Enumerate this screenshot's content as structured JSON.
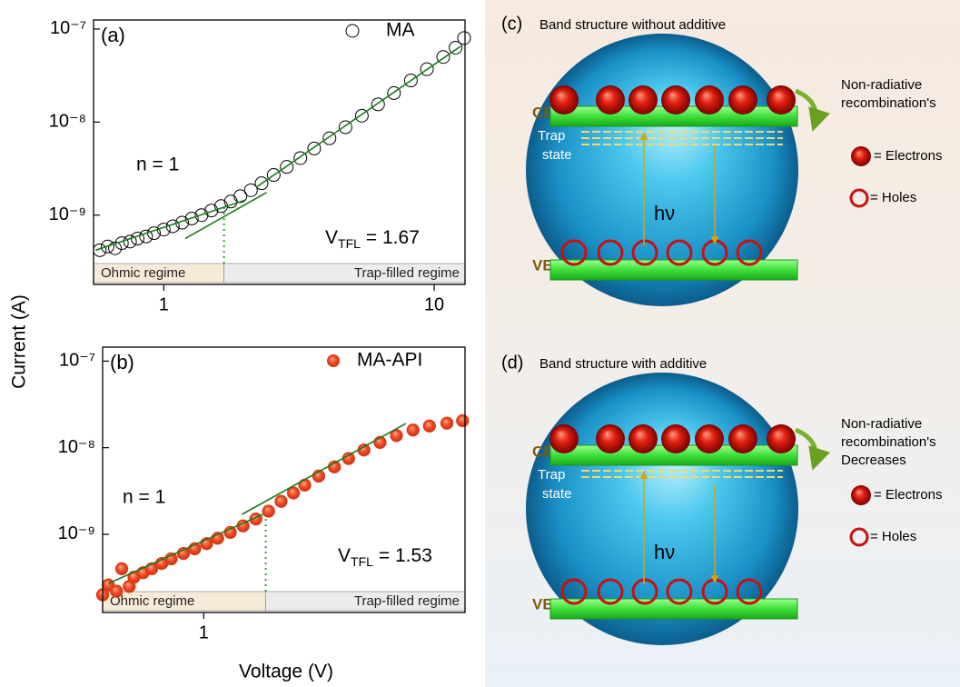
{
  "figure": {
    "y_label": "Current (A)",
    "x_label": "Voltage (V)"
  },
  "chart_data": [
    {
      "type": "scatter",
      "panel": "(a)",
      "log_x": true,
      "log_y": true,
      "xlim": [
        0.55,
        13
      ],
      "ylim": [
        1.8e-10,
        1.25e-07
      ],
      "xticks": [
        1,
        10
      ],
      "yticks": [
        {
          "value": 1e-09,
          "label": "10⁻⁹"
        },
        {
          "value": 1e-08,
          "label": "10⁻⁸"
        },
        {
          "value": 1e-07,
          "label": "10⁻⁷"
        }
      ],
      "x": [
        0.58,
        0.62,
        0.66,
        0.7,
        0.75,
        0.8,
        0.86,
        0.92,
        1.0,
        1.08,
        1.17,
        1.27,
        1.38,
        1.5,
        1.63,
        1.77,
        1.92,
        2.1,
        2.3,
        2.55,
        2.85,
        3.2,
        3.6,
        4.1,
        4.7,
        5.4,
        6.2,
        7.1,
        8.2,
        9.4,
        10.8,
        12.0,
        12.9
      ],
      "series": [
        {
          "name": "MA",
          "color": "#000000",
          "marker": "open-circle",
          "values": [
            4.2e-10,
            4.6e-10,
            4.4e-10,
            5e-10,
            5.2e-10,
            5.6e-10,
            5.9e-10,
            6.4e-10,
            7e-10,
            7.6e-10,
            8.3e-10,
            9.2e-10,
            1e-09,
            1.12e-09,
            1.25e-09,
            1.4e-09,
            1.6e-09,
            1.85e-09,
            2.2e-09,
            2.7e-09,
            3.3e-09,
            4.1e-09,
            5.2e-09,
            6.7e-09,
            8.8e-09,
            1.17e-08,
            1.55e-08,
            2.05e-08,
            2.8e-08,
            3.7e-08,
            5e-08,
            6.3e-08,
            8e-08
          ]
        }
      ],
      "fit_color": "#1a7a1a",
      "fit_lines": [
        {
          "x": [
            0.56,
            2.0
          ],
          "values": [
            4.2e-10,
            1.45e-09
          ]
        },
        {
          "x": [
            1.2,
            2.4
          ],
          "values": [
            5.6e-10,
            1.75e-09
          ]
        },
        {
          "x": [
            2.2,
            12.5
          ],
          "values": [
            2e-09,
            6.5e-08
          ]
        }
      ],
      "n_label": "n = 1",
      "vtfl": 1.67,
      "vtfl_symbol": "V",
      "vtfl_subscript": "TFL",
      "vtfl_text": "= 1.67",
      "regimes": [
        "Ohmic regime",
        "Trap-filled regime"
      ]
    },
    {
      "type": "scatter",
      "panel": "(b)",
      "log_x": true,
      "log_y": true,
      "xlim": [
        0.5,
        6
      ],
      "ylim": [
        1.25e-10,
        1.45e-07
      ],
      "xticks": [
        1
      ],
      "yticks": [
        {
          "value": 1e-09,
          "label": "10⁻⁹"
        },
        {
          "value": 1e-08,
          "label": "10⁻⁸"
        },
        {
          "value": 1e-07,
          "label": "10⁻⁷"
        }
      ],
      "x": [
        0.5,
        0.52,
        0.55,
        0.57,
        0.6,
        0.62,
        0.66,
        0.7,
        0.75,
        0.8,
        0.87,
        0.94,
        1.02,
        1.1,
        1.2,
        1.31,
        1.43,
        1.56,
        1.7,
        1.85,
        2.0,
        2.2,
        2.45,
        2.7,
        3.0,
        3.35,
        3.75,
        4.2,
        4.7,
        5.3,
        5.9
      ],
      "series": [
        {
          "name": "MA-API",
          "color": "#f04a28",
          "marker": "filled-sphere",
          "values": [
            2e-10,
            2.6e-10,
            2.2e-10,
            4e-10,
            2.5e-10,
            3.2e-10,
            3.6e-10,
            4e-10,
            4.6e-10,
            5.2e-10,
            6e-10,
            6.8e-10,
            7.8e-10,
            9e-10,
            1.05e-09,
            1.25e-09,
            1.5e-09,
            1.85e-09,
            2.4e-09,
            3e-09,
            3.7e-09,
            4.7e-09,
            6e-09,
            7.5e-09,
            9.4e-09,
            1.15e-08,
            1.38e-08,
            1.6e-08,
            1.78e-08,
            1.92e-08,
            2.05e-08
          ]
        }
      ],
      "fit_color": "#1a7a1a",
      "fit_lines": [
        {
          "x": [
            0.52,
            1.5
          ],
          "values": [
            2.7e-10,
            1.7e-09
          ]
        },
        {
          "x": [
            1.3,
            4.0
          ],
          "values": [
            1.7e-09,
            1.9e-08
          ]
        }
      ],
      "n_label": "n = 1",
      "vtfl": 1.53,
      "vtfl_symbol": "V",
      "vtfl_subscript": "TFL",
      "vtfl_text": "= 1.53",
      "regimes": [
        "Ohmic regime",
        "Trap-filled regime"
      ]
    }
  ],
  "diagrams": [
    {
      "panel": "(c)",
      "title": "Band structure without additive",
      "cb": "CB",
      "vb": "VB",
      "trap": [
        "Trap",
        "state"
      ],
      "photon": "hν",
      "note": [
        "Non-radiative",
        " recombination's"
      ],
      "electrons": "= Electrons",
      "holes": "= Holes"
    },
    {
      "panel": "(d)",
      "title": "Band structure with additive",
      "cb": "CB",
      "vb": "VB",
      "trap": [
        "Trap",
        "state"
      ],
      "photon": "hν",
      "note": [
        "Non-radiative",
        "recombination's",
        "Decreases"
      ],
      "electrons": "= Electrons",
      "holes": "= Holes"
    }
  ]
}
